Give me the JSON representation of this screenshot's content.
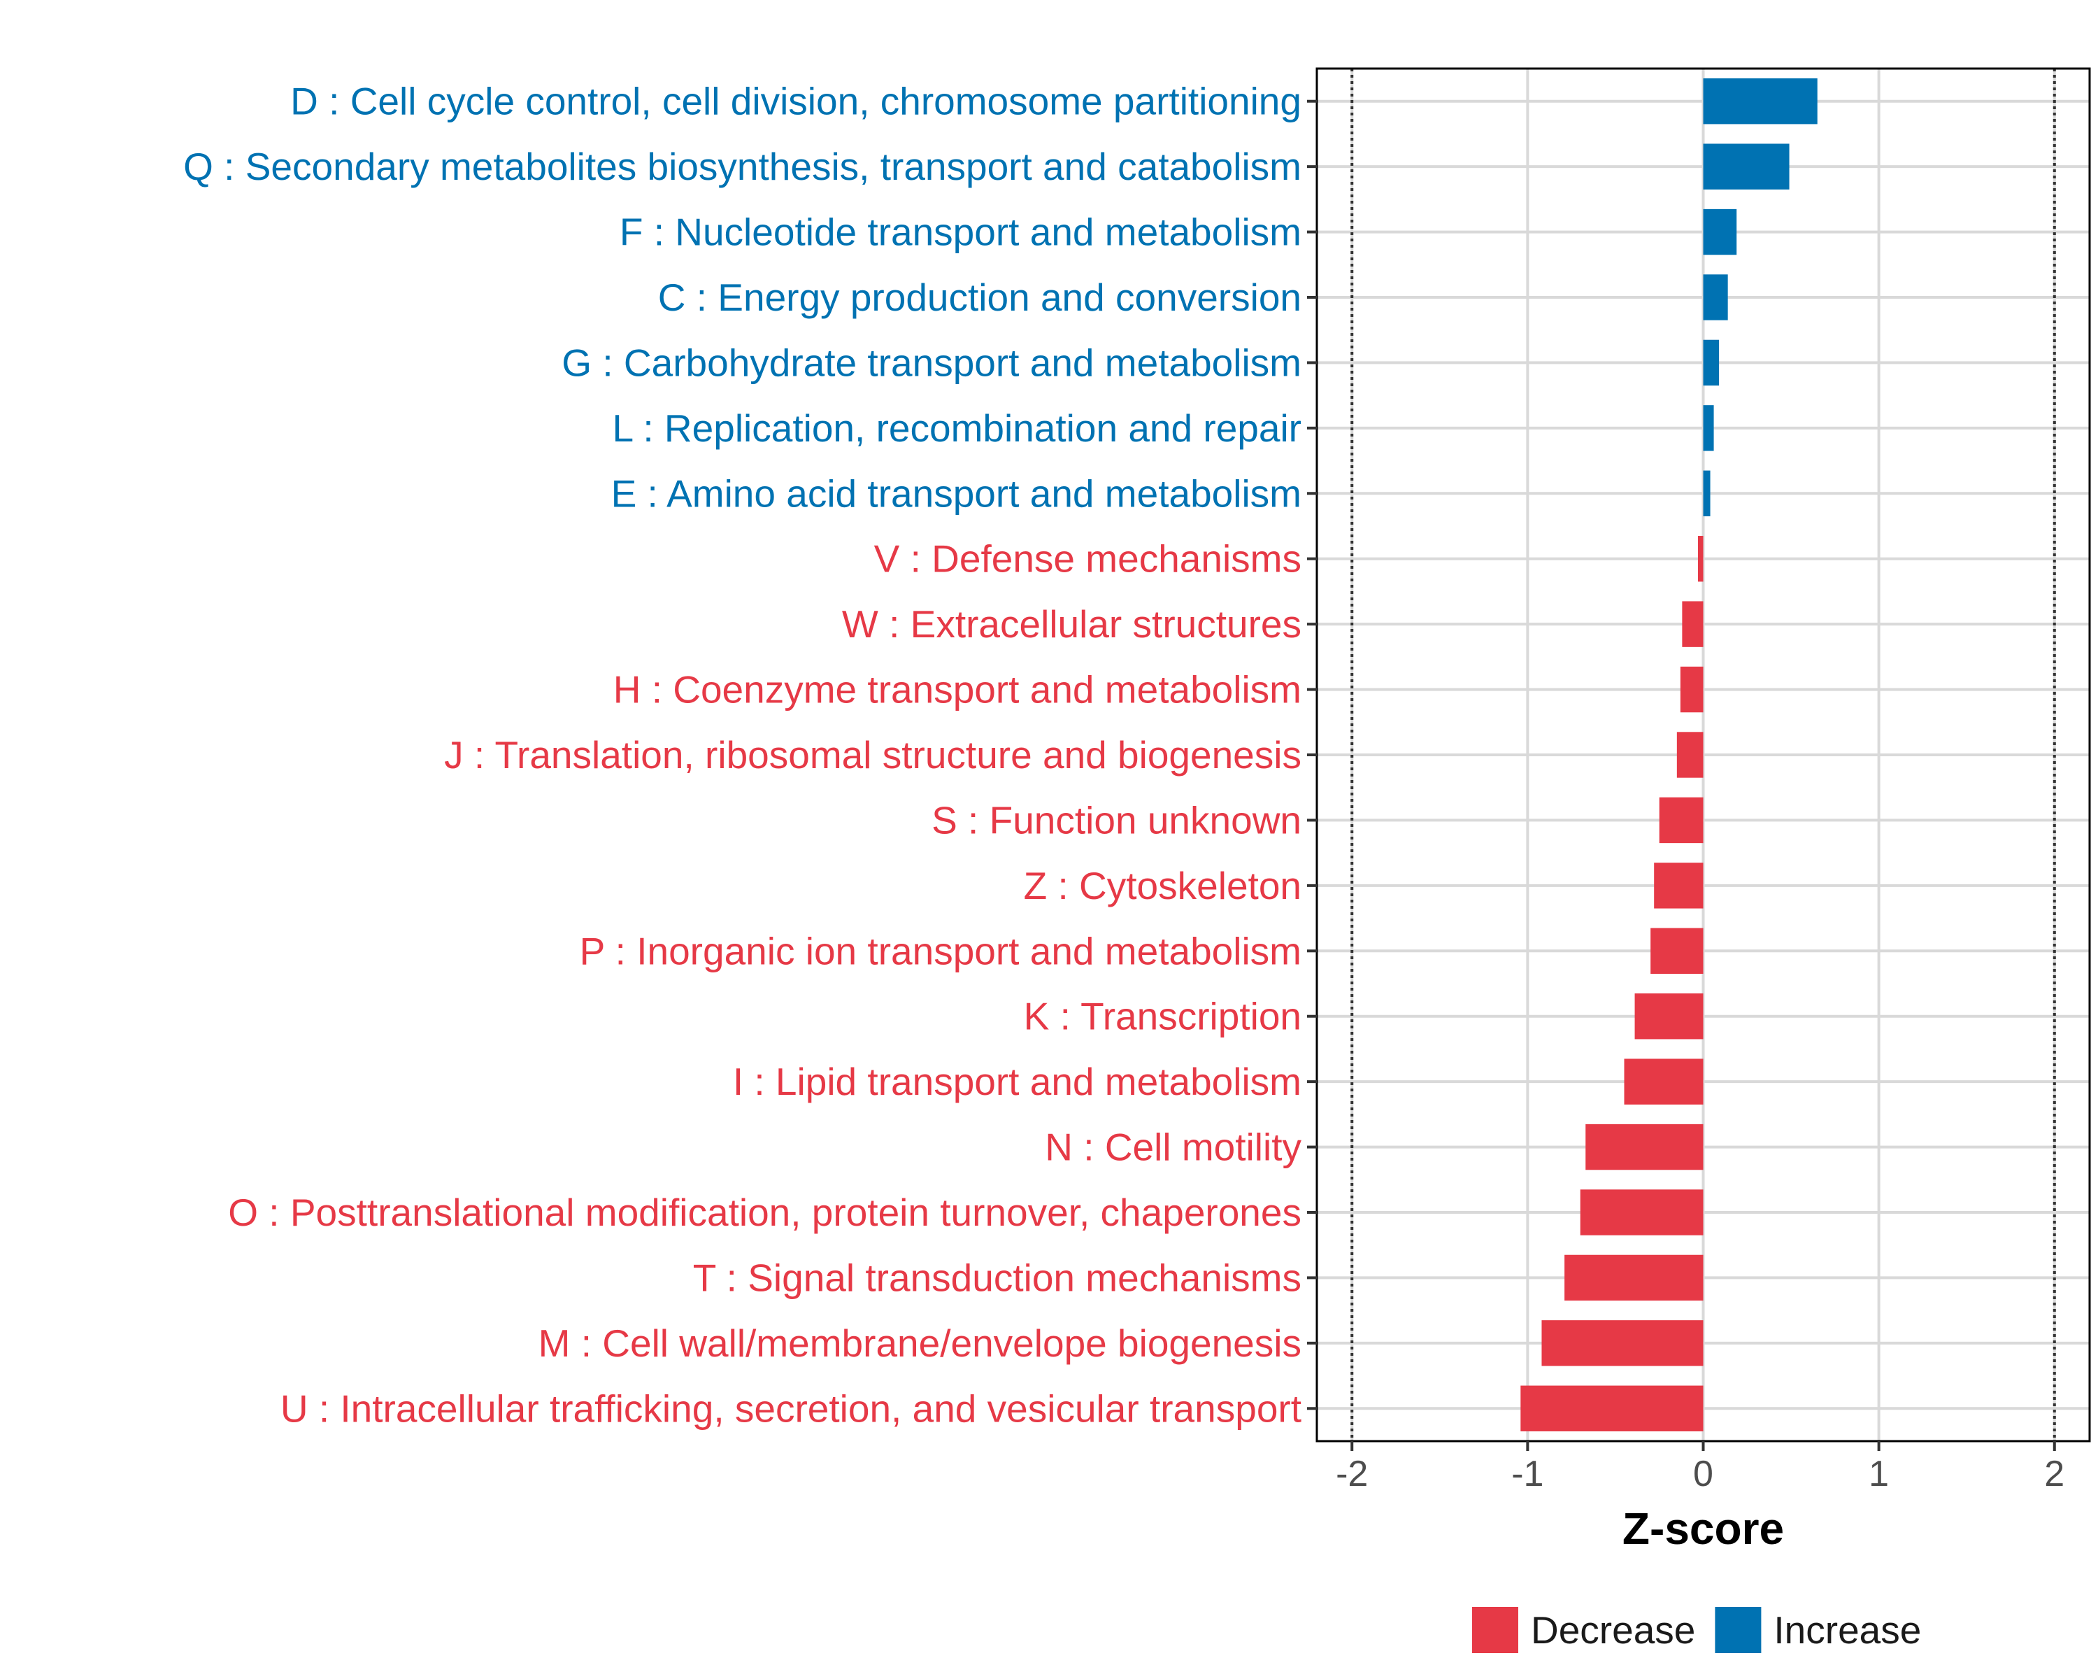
{
  "chart_data": {
    "type": "bar",
    "orientation": "horizontal",
    "title": "",
    "xlabel": "Z-score",
    "ylabel": "",
    "xlim": [
      -2.2,
      2.2
    ],
    "xticks": [
      "-2",
      "-1",
      "0",
      "1",
      "2"
    ],
    "xtick_values": [
      -2,
      -1,
      0,
      1,
      2
    ],
    "reference_lines": [
      -2,
      2
    ],
    "grid": true,
    "legend_position": "bottom",
    "colors": {
      "Decrease": "#e63946",
      "Increase": "#0072b2"
    },
    "legend": [
      {
        "label": "Decrease",
        "color": "#e63946"
      },
      {
        "label": "Increase",
        "color": "#0072b2"
      }
    ],
    "categories": [
      "D : Cell cycle control, cell division, chromosome partitioning",
      "Q : Secondary metabolites biosynthesis, transport and catabolism",
      "F : Nucleotide transport and metabolism",
      "C : Energy production and conversion",
      "G : Carbohydrate transport and metabolism",
      "L : Replication, recombination and repair",
      "E : Amino acid transport and metabolism",
      "V : Defense mechanisms",
      "W : Extracellular structures",
      "H : Coenzyme transport and metabolism",
      "J : Translation, ribosomal structure and biogenesis",
      "S : Function unknown",
      "Z : Cytoskeleton",
      "P : Inorganic ion transport and metabolism",
      "K : Transcription",
      "I : Lipid transport and metabolism",
      "N : Cell motility",
      "O : Posttranslational modification, protein turnover, chaperones",
      "T : Signal transduction mechanisms",
      "M : Cell wall/membrane/envelope biogenesis",
      "U : Intracellular trafficking, secretion, and vesicular transport"
    ],
    "values": [
      0.65,
      0.49,
      0.19,
      0.14,
      0.09,
      0.06,
      0.04,
      -0.03,
      -0.12,
      -0.13,
      -0.15,
      -0.25,
      -0.28,
      -0.3,
      -0.39,
      -0.45,
      -0.67,
      -0.7,
      -0.79,
      -0.92,
      -1.04
    ],
    "groups": [
      "Increase",
      "Increase",
      "Increase",
      "Increase",
      "Increase",
      "Increase",
      "Increase",
      "Decrease",
      "Decrease",
      "Decrease",
      "Decrease",
      "Decrease",
      "Decrease",
      "Decrease",
      "Decrease",
      "Decrease",
      "Decrease",
      "Decrease",
      "Decrease",
      "Decrease",
      "Decrease"
    ]
  }
}
